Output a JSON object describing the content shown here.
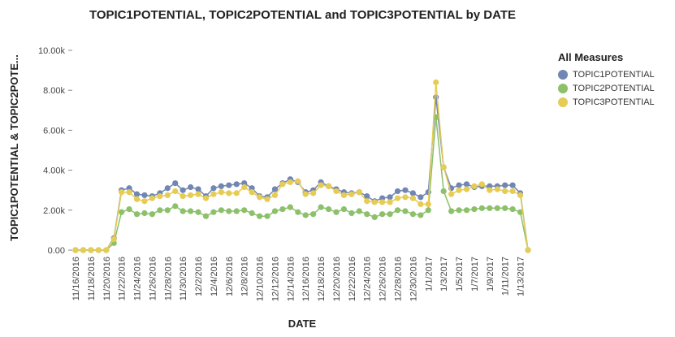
{
  "chart_data": {
    "type": "line",
    "title": "TOPIC1POTENTIAL, TOPIC2POTENTIAL and TOPIC3POTENTIAL by DATE",
    "xlabel": "DATE",
    "ylabel": "TOPIC1POTENTIAL & TOPIC2POTE...",
    "ylim": [
      0,
      10000
    ],
    "y_ticks": [
      "0.00",
      "2.00k",
      "4.00k",
      "6.00k",
      "8.00k",
      "10.00k"
    ],
    "grid": false,
    "legend_position": "right",
    "legend_title": "All Measures",
    "x": [
      "11/16/2016",
      "11/17/2016",
      "11/18/2016",
      "11/19/2016",
      "11/20/2016",
      "11/21/2016",
      "11/22/2016",
      "11/23/2016",
      "11/24/2016",
      "11/25/2016",
      "11/26/2016",
      "11/27/2016",
      "11/28/2016",
      "11/29/2016",
      "11/30/2016",
      "12/1/2016",
      "12/2/2016",
      "12/3/2016",
      "12/4/2016",
      "12/5/2016",
      "12/6/2016",
      "12/7/2016",
      "12/8/2016",
      "12/9/2016",
      "12/10/2016",
      "12/11/2016",
      "12/12/2016",
      "12/13/2016",
      "12/14/2016",
      "12/15/2016",
      "12/16/2016",
      "12/17/2016",
      "12/18/2016",
      "12/19/2016",
      "12/20/2016",
      "12/21/2016",
      "12/22/2016",
      "12/23/2016",
      "12/24/2016",
      "12/25/2016",
      "12/26/2016",
      "12/27/2016",
      "12/28/2016",
      "12/29/2016",
      "12/30/2016",
      "12/31/2016",
      "1/1/2017",
      "1/2/2017",
      "1/3/2017",
      "1/4/2017",
      "1/5/2017",
      "1/6/2017",
      "1/7/2017",
      "1/8/2017",
      "1/9/2017",
      "1/10/2017",
      "1/11/2017",
      "1/12/2017",
      "1/13/2017",
      "1/14/2017"
    ],
    "x_tick_labels": [
      "11/16/2016",
      "11/18/2016",
      "11/20/2016",
      "11/22/2016",
      "11/24/2016",
      "11/26/2016",
      "11/28/2016",
      "11/30/2016",
      "12/2/2016",
      "12/4/2016",
      "12/6/2016",
      "12/8/2016",
      "12/10/2016",
      "12/12/2016",
      "12/14/2016",
      "12/16/2016",
      "12/18/2016",
      "12/20/2016",
      "12/22/2016",
      "12/24/2016",
      "12/26/2016",
      "12/28/2016",
      "12/30/2016",
      "1/1/2017",
      "1/3/2017",
      "1/5/2017",
      "1/7/2017",
      "1/9/2017",
      "1/11/2017",
      "1/13/2017"
    ],
    "series": [
      {
        "name": "TOPIC1POTENTIAL",
        "color": "#7186b3",
        "values": [
          0,
          0,
          0,
          0,
          0,
          600,
          3000,
          3100,
          2800,
          2750,
          2700,
          2850,
          3100,
          3350,
          3000,
          3150,
          3050,
          2700,
          3100,
          3200,
          3250,
          3300,
          3350,
          3100,
          2700,
          2650,
          3050,
          3350,
          3550,
          3400,
          2900,
          3000,
          3400,
          3200,
          3050,
          2900,
          2850,
          2900,
          2700,
          2450,
          2600,
          2650,
          2950,
          3000,
          2850,
          2650,
          2900,
          7650,
          4150,
          3100,
          3250,
          3300,
          3150,
          3200,
          3200,
          3200,
          3250,
          3250,
          2850,
          0
        ]
      },
      {
        "name": "TOPIC2POTENTIAL",
        "color": "#8cc06a",
        "values": [
          0,
          0,
          0,
          0,
          0,
          350,
          1900,
          2050,
          1800,
          1850,
          1800,
          2000,
          2000,
          2200,
          1950,
          1950,
          1900,
          1700,
          1900,
          2000,
          1950,
          1950,
          2000,
          1850,
          1700,
          1700,
          1950,
          2050,
          2150,
          1900,
          1750,
          1800,
          2150,
          2050,
          1900,
          2050,
          1850,
          1950,
          1800,
          1650,
          1800,
          1800,
          2000,
          1950,
          1800,
          1750,
          2000,
          6650,
          2950,
          1950,
          2000,
          2000,
          2050,
          2100,
          2100,
          2100,
          2100,
          2050,
          1900,
          0
        ]
      },
      {
        "name": "TOPIC3POTENTIAL",
        "color": "#e6cc55",
        "values": [
          0,
          0,
          0,
          0,
          0,
          550,
          2900,
          2900,
          2550,
          2450,
          2600,
          2700,
          2750,
          2950,
          2700,
          2750,
          2800,
          2600,
          2800,
          2900,
          2850,
          2850,
          3150,
          2900,
          2650,
          2550,
          2750,
          3300,
          3400,
          3450,
          2800,
          2850,
          3250,
          3200,
          2950,
          2750,
          2800,
          2900,
          2450,
          2400,
          2400,
          2400,
          2600,
          2650,
          2600,
          2300,
          2300,
          8400,
          4150,
          2800,
          3000,
          3050,
          3200,
          3300,
          3000,
          3050,
          2950,
          2950,
          2750,
          0
        ]
      }
    ]
  }
}
